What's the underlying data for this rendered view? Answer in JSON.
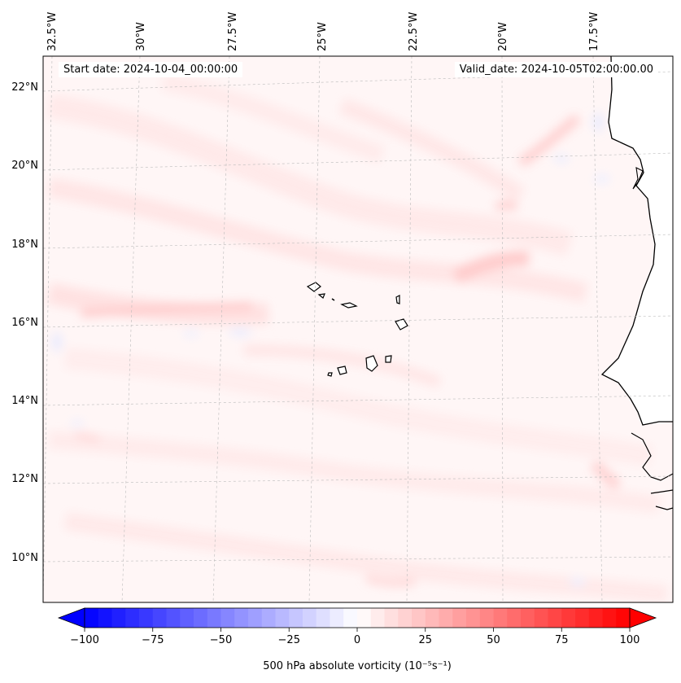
{
  "header": {
    "start_date": "Start date: 2024-10-04_00:00:00",
    "valid_date": "Valid_date: 2024-10-05T02:00:00.00"
  },
  "top_lon_labels": [
    "32.5°W",
    "30°W",
    "27.5°W",
    "25°W",
    "22.5°W",
    "20°W",
    "17.5°W"
  ],
  "left_lat_labels": [
    "22°N",
    "20°N",
    "18°N",
    "16°N",
    "14°N",
    "12°N",
    "10°N"
  ],
  "colorbar": {
    "label": "500 hPa absolute vorticity (10⁻⁵s⁻¹)",
    "ticks": [
      "−100",
      "−75",
      "−50",
      "−25",
      "0",
      "25",
      "50",
      "75",
      "100"
    ],
    "min": -100,
    "max": 100,
    "levels": 40
  },
  "colors": {
    "negative": "#0000ff",
    "neutral": "#ffffff",
    "positive": "#ff0000",
    "coast": "#000000"
  }
}
